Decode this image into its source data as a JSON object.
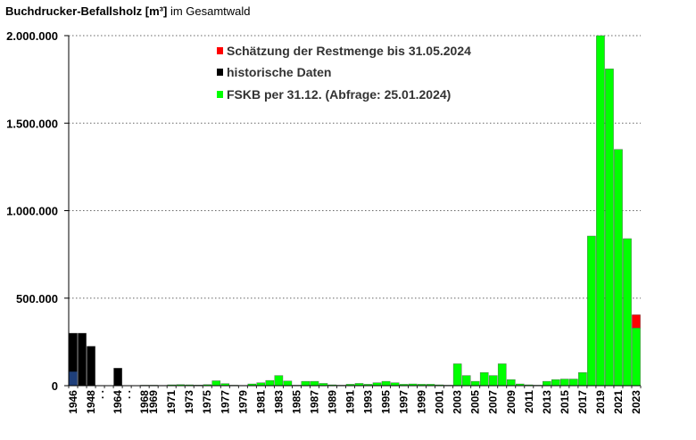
{
  "title": {
    "bold": "Buchdrucker-Befallsholz [m³]",
    "normal": "im Gesamtwald"
  },
  "colors": {
    "fskb": "#00ff00",
    "historic": "#000000",
    "estimate": "#ff0000"
  },
  "chart_data": {
    "type": "bar",
    "title": "Buchdrucker-Befallsholz [m³] im Gesamtwald",
    "ylim": [
      0,
      2000000
    ],
    "yticks": [
      0,
      500000,
      1000000,
      1500000,
      2000000
    ],
    "ytick_labels": [
      "0",
      "500.000",
      "1.000.000",
      "1.500.000",
      "2.000.000"
    ],
    "grid": "horizontal dotted",
    "legend_placement": "top-center",
    "legend": [
      {
        "label": "Schätzung der Restmenge bis 31.05.2024",
        "color": "#ff0000"
      },
      {
        "label": "historische Daten",
        "color": "#000000"
      },
      {
        "label": "FSKB per 31.12. (Abfrage: 25.01.2024)",
        "color": "#00ff00"
      }
    ],
    "categories": [
      "1946",
      "1947",
      "1948",
      ". .",
      ". .",
      "1964",
      ". .",
      ". .",
      "1968",
      "1969",
      "1970",
      "1971",
      "1972",
      "1973",
      "1974",
      "1975",
      "1976",
      "1977",
      "1978",
      "1979",
      "1980",
      "1981",
      "1982",
      "1983",
      "1984",
      "1985",
      "1986",
      "1987",
      "1988",
      "1989",
      "1990",
      "1991",
      "1992",
      "1993",
      "1994",
      "1995",
      "1996",
      "1997",
      "1998",
      "1999",
      "2000",
      "2001",
      "2002",
      "2003",
      "2004",
      "2005",
      "2006",
      "2007",
      "2008",
      "2009",
      "2010",
      "2011",
      "2012",
      "2013",
      "2014",
      "2015",
      "2016",
      "2017",
      "2018",
      "2019",
      "2020",
      "2021",
      "2022",
      "2023"
    ],
    "xtick_labels": [
      "1946",
      "1948",
      ". .",
      "1964",
      ". .",
      "1968",
      "1969",
      "1971",
      "1973",
      "1975",
      "1977",
      "1979",
      "1981",
      "1983",
      "1985",
      "1987",
      "1989",
      "1991",
      "1993",
      "1995",
      "1997",
      "1999",
      "2001",
      "2003",
      "2005",
      "2007",
      "2009",
      "2011",
      "2013",
      "2015",
      "2017",
      "2019",
      "2021",
      "2023"
    ],
    "series": [
      {
        "name": "historische Daten",
        "color": "#000000",
        "values": [
          300000,
          300000,
          225000,
          0,
          0,
          100000,
          0,
          0,
          0,
          0,
          0,
          0,
          0,
          0,
          0,
          0,
          0,
          0,
          0,
          0,
          0,
          0,
          0,
          0,
          0,
          0,
          0,
          0,
          0,
          0,
          0,
          0,
          0,
          0,
          0,
          0,
          0,
          0,
          0,
          0,
          0,
          0,
          0,
          0,
          0,
          0,
          0,
          0,
          0,
          0,
          0,
          0,
          0,
          0,
          0,
          0,
          0,
          0,
          0,
          0,
          0,
          0,
          0,
          0
        ]
      },
      {
        "name": "FSKB per 31.12. (Abfrage: 25.01.2024)",
        "color": "#00ff00",
        "values": [
          0,
          0,
          0,
          0,
          0,
          0,
          0,
          0,
          3000,
          3000,
          2000,
          5000,
          6000,
          5000,
          4000,
          6000,
          28000,
          12000,
          3000,
          2000,
          10000,
          17000,
          30000,
          58000,
          27000,
          3000,
          25000,
          25000,
          13000,
          5000,
          3000,
          8000,
          13000,
          8000,
          17000,
          25000,
          17000,
          8000,
          10000,
          8000,
          8000,
          5000,
          3000,
          125000,
          58000,
          25000,
          75000,
          58000,
          125000,
          35000,
          10000,
          5000,
          3000,
          25000,
          35000,
          38000,
          38000,
          75000,
          855000,
          2000000,
          1810000,
          1350000,
          840000,
          330000
        ]
      },
      {
        "name": "Schätzung der Restmenge bis 31.05.2024",
        "color": "#ff0000",
        "values": [
          0,
          0,
          0,
          0,
          0,
          0,
          0,
          0,
          0,
          0,
          0,
          0,
          0,
          0,
          0,
          0,
          0,
          0,
          0,
          0,
          0,
          0,
          0,
          0,
          0,
          0,
          0,
          0,
          0,
          0,
          0,
          0,
          0,
          0,
          0,
          0,
          0,
          0,
          0,
          0,
          0,
          0,
          0,
          0,
          0,
          0,
          0,
          0,
          0,
          0,
          0,
          0,
          0,
          0,
          0,
          0,
          0,
          0,
          0,
          0,
          0,
          0,
          0,
          75000
        ]
      }
    ],
    "notes_blue_1946": 80000
  }
}
